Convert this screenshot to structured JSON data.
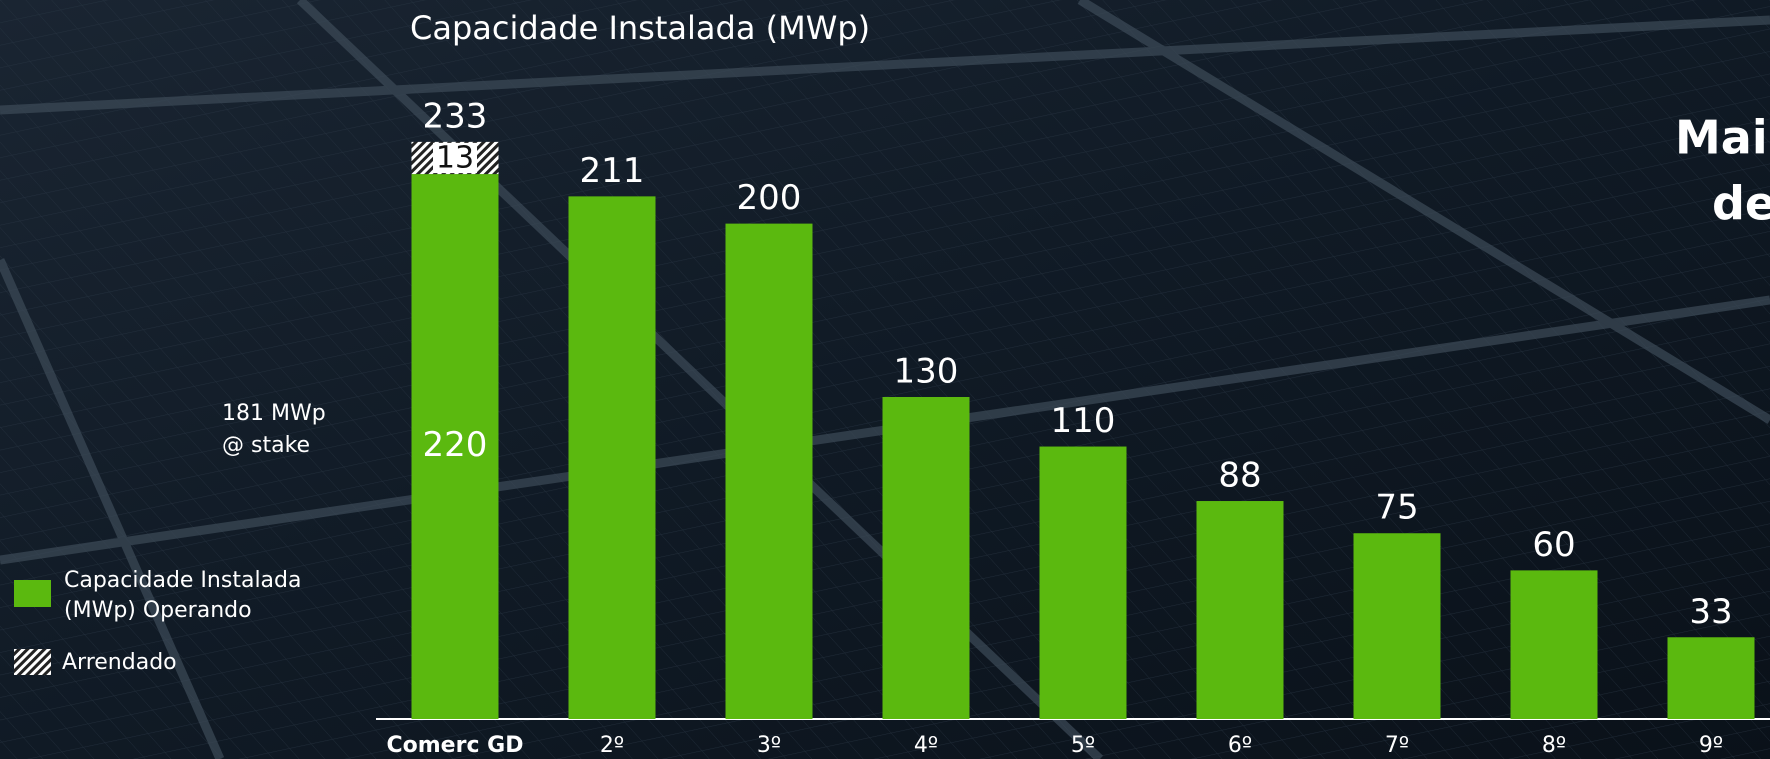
{
  "chart_data": {
    "type": "bar",
    "stacked": true,
    "title": "Capacidade Instalada (MWp)",
    "categories": [
      "Comerc GD",
      "2º",
      "3º",
      "4º",
      "5º",
      "6º",
      "7º",
      "8º",
      "9º"
    ],
    "series": [
      {
        "name": "Capacidade Instalada (MWp) Operando",
        "color": "#5bb90f",
        "values": [
          220,
          211,
          200,
          130,
          110,
          88,
          75,
          60,
          33
        ]
      },
      {
        "name": "Arrendado",
        "color": "hatch",
        "values": [
          13,
          null,
          null,
          null,
          null,
          null,
          null,
          null,
          null
        ]
      }
    ],
    "total_label": "233",
    "annotation": [
      "181 MWp",
      "@ stake"
    ],
    "side_text": [
      "Mai",
      "de"
    ],
    "ylim": [
      0,
      260
    ]
  }
}
